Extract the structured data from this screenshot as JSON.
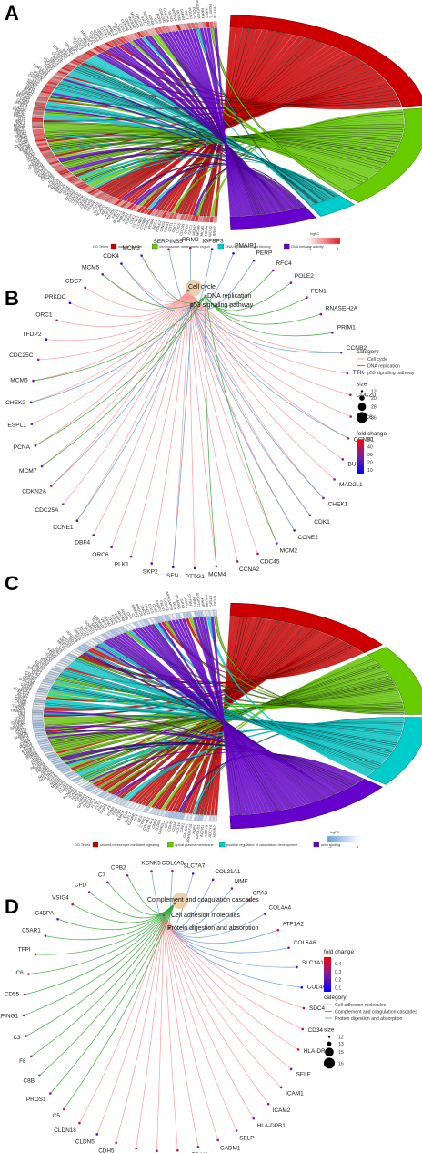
{
  "chart_data": [
    {
      "panel": "A",
      "type": "chord",
      "legend": {
        "title": "GO Terms",
        "scale_title": "logFC",
        "scale_ticks": [
          "1",
          "3"
        ],
        "low_color": "#ffffff",
        "high_color": "#e41a1c"
      },
      "terms": [
        {
          "name": "nuclear division",
          "color": "#cc0000",
          "genes": 70
        },
        {
          "name": "chromosome, centromeric region",
          "color": "#66cc00",
          "genes": 50
        },
        {
          "name": "DNA replication origin binding",
          "color": "#00cccc",
          "genes": 10
        },
        {
          "name": "DNA helicase activity",
          "color": "#6600cc",
          "genes": 22
        }
      ],
      "genes": [
        "RRM2",
        "MCM2",
        "MCM4",
        "MCM5",
        "MCM6",
        "MCM7",
        "ORC1",
        "ORC6",
        "CDC45",
        "CDC6",
        "CDC7",
        "CDT1",
        "GINS1",
        "GINS2",
        "POLE2",
        "RFC4",
        "PCNA",
        "CCNA2",
        "CCNB1",
        "CCNB2",
        "CCNE1",
        "CDK1",
        "TOP2A",
        "BUB1",
        "BUB1B",
        "MAD2L1",
        "KIF11",
        "KIF20A",
        "KIF2C",
        "KIF4A",
        "NCAPG",
        "NDC80",
        "NUF2",
        "CENPF",
        "CENPA",
        "CENPE",
        "CENPI",
        "CENPK",
        "CENPN",
        "CENPU",
        "CENPW",
        "SKA1",
        "SKA3",
        "SPC24",
        "SPC25",
        "ZWINT",
        "AURKA",
        "AURKB",
        "PLK1",
        "TTK",
        "CDCA8",
        "BIRC5",
        "ESPL1",
        "PTTG1",
        "CDC20",
        "ASPM",
        "DLGAP5",
        "HJURP",
        "OIP5",
        "SGO1",
        "SGO2",
        "TPX2",
        "PRC1",
        "KIF14",
        "KIF18A",
        "KIF18B",
        "DEPDC1",
        "CCNF",
        "CDCA5",
        "ECT2",
        "SPAG5",
        "NEK2",
        "TRIP13",
        "UBE2C",
        "HMMR",
        "FBXO5",
        "KNL1",
        "MKI67",
        "DTL",
        "CHEK1",
        "BRCA1",
        "RAD51",
        "RAD54L",
        "HELLS",
        "BLM",
        "WDHD1",
        "CLSPN",
        "EXO1",
        "RECQL4",
        "FANCD2",
        "FANCI",
        "POLQ",
        "MND1",
        "DNA2",
        "PRIM1",
        "TONSL",
        "LIG1",
        "CHAF1A",
        "CHAF1B",
        "DSCC1",
        "E2F8",
        "TIMELESS",
        "TK1",
        "TYMS",
        "NCAPH",
        "NCAPD2",
        "SMC4",
        "KIF15",
        "CKAP2L",
        "CKAP5",
        "CDK5RAP2",
        "MELK",
        "PBK",
        "SHCBP1",
        "STIL",
        "TACC3",
        "NUSAP1",
        "CEP55",
        "ANLN",
        "RACGAP1",
        "KIF23",
        "CDCA3",
        "CDKN3",
        "UBE2T",
        "GTSE1",
        "FOXM1",
        "MYBL2",
        "E2F1",
        "LMNB1",
        "CKS2",
        "CENPM",
        "CENPH",
        "INCENP",
        "MIS18BP1",
        "ERCC6L",
        "KIFC1",
        "NCAPG2",
        "KIF4B",
        "CIT",
        "BORA",
        "CDC25C",
        "CDC25A",
        "MCM3",
        "MCM10",
        "MCM8",
        "GMNN",
        "RBL1",
        "POLA1",
        "POLD1",
        "RNASEH2A",
        "RRM1",
        "WEE1",
        "PKMYT1",
        "CHTF18"
      ]
    },
    {
      "panel": "B",
      "type": "cnetplot",
      "categories": [
        "Cell cycle",
        "DNA replication",
        "p53 signaling pathway"
      ],
      "category_colors": [
        "#ff9999",
        "#33aa33",
        "#6699dd"
      ],
      "size_legend": [
        12,
        20,
        28,
        36
      ],
      "fold_change": {
        "min": 5,
        "max": 50,
        "ticks": [
          50,
          40,
          30,
          20,
          10
        ],
        "low_color": "#0000ff",
        "high_color": "#ff0000"
      },
      "legend_titles": {
        "category": "category",
        "size": "size",
        "color": "fold change"
      },
      "genes": [
        {
          "name": "SERPINB5",
          "fc": 38,
          "cats": [
            2
          ]
        },
        {
          "name": "RRM2",
          "fc": 30,
          "cats": [
            2
          ]
        },
        {
          "name": "IGFBP3",
          "fc": 14,
          "cats": [
            2
          ]
        },
        {
          "name": "PMAIP1",
          "fc": 12,
          "cats": [
            2
          ]
        },
        {
          "name": "PERP",
          "fc": 18,
          "cats": [
            2
          ]
        },
        {
          "name": "RFC4",
          "fc": 26,
          "cats": [
            1
          ]
        },
        {
          "name": "POLE2",
          "fc": 35,
          "cats": [
            1
          ]
        },
        {
          "name": "FEN1",
          "fc": 30,
          "cats": [
            1
          ]
        },
        {
          "name": "RNASEH2A",
          "fc": 32,
          "cats": [
            1
          ]
        },
        {
          "name": "PRIM1",
          "fc": 22,
          "cats": [
            1
          ]
        },
        {
          "name": "CCNB2",
          "fc": 28,
          "cats": [
            0,
            2
          ]
        },
        {
          "name": "TTK",
          "fc": 34,
          "cats": [
            0
          ]
        },
        {
          "name": "CDC20",
          "fc": 40,
          "cats": [
            0
          ]
        },
        {
          "name": "CDC6",
          "fc": 36,
          "cats": [
            0
          ]
        },
        {
          "name": "CCNB1",
          "fc": 30,
          "cats": [
            0,
            2
          ]
        },
        {
          "name": "BUB1",
          "fc": 32,
          "cats": [
            0
          ]
        },
        {
          "name": "MAD2L1",
          "fc": 24,
          "cats": [
            0
          ]
        },
        {
          "name": "CHEK1",
          "fc": 28,
          "cats": [
            0,
            2
          ]
        },
        {
          "name": "CDK1",
          "fc": 33,
          "cats": [
            0,
            2
          ]
        },
        {
          "name": "CCNE2",
          "fc": 20,
          "cats": [
            0,
            2
          ]
        },
        {
          "name": "MCM2",
          "fc": 27,
          "cats": [
            0,
            1
          ]
        },
        {
          "name": "CDC45",
          "fc": 31,
          "cats": [
            0
          ]
        },
        {
          "name": "CCNA2",
          "fc": 29,
          "cats": [
            0
          ]
        },
        {
          "name": "MCM4",
          "fc": 25,
          "cats": [
            0,
            1
          ]
        },
        {
          "name": "PTTG1",
          "fc": 22,
          "cats": [
            0
          ]
        },
        {
          "name": "SFN",
          "fc": 15,
          "cats": [
            0,
            2
          ]
        },
        {
          "name": "SKP2",
          "fc": 18,
          "cats": [
            0
          ]
        },
        {
          "name": "PLK1",
          "fc": 36,
          "cats": [
            0
          ]
        },
        {
          "name": "ORC6",
          "fc": 21,
          "cats": [
            0
          ]
        },
        {
          "name": "DBF4",
          "fc": 19,
          "cats": [
            0
          ]
        },
        {
          "name": "CCNE1",
          "fc": 17,
          "cats": [
            0,
            2
          ]
        },
        {
          "name": "CDC25A",
          "fc": 26,
          "cats": [
            0
          ]
        },
        {
          "name": "CDKN2A",
          "fc": 45,
          "cats": [
            0,
            2
          ]
        },
        {
          "name": "MCM7",
          "fc": 23,
          "cats": [
            0,
            1
          ]
        },
        {
          "name": "PCNA",
          "fc": 14,
          "cats": [
            0,
            1
          ]
        },
        {
          "name": "ESPL1",
          "fc": 28,
          "cats": [
            0
          ]
        },
        {
          "name": "CHEK2",
          "fc": 16,
          "cats": [
            0,
            2
          ]
        },
        {
          "name": "MCM6",
          "fc": 24,
          "cats": [
            0,
            1
          ]
        },
        {
          "name": "CDC25C",
          "fc": 30,
          "cats": [
            0
          ]
        },
        {
          "name": "TFDP2",
          "fc": 11,
          "cats": [
            0
          ]
        },
        {
          "name": "ORC1",
          "fc": 33,
          "cats": [
            0
          ]
        },
        {
          "name": "PRKDC",
          "fc": 9,
          "cats": [
            0
          ]
        },
        {
          "name": "CDC7",
          "fc": 21,
          "cats": [
            0
          ]
        },
        {
          "name": "MCM5",
          "fc": 20,
          "cats": [
            0,
            1
          ]
        },
        {
          "name": "CDK4",
          "fc": 12,
          "cats": [
            0,
            2
          ]
        },
        {
          "name": "MCM3",
          "fc": 19,
          "cats": [
            0,
            1
          ]
        }
      ]
    },
    {
      "panel": "C",
      "type": "chord",
      "legend": {
        "title": "GO Terms",
        "scale_title": "logFC",
        "scale_ticks": [
          "-2",
          "-1"
        ],
        "low_color": "#6a9fe0",
        "high_color": "#ffffff"
      },
      "terms": [
        {
          "name": "second-messenger-mediated signaling",
          "color": "#cc0000",
          "genes": 40
        },
        {
          "name": "apical plasma membrane",
          "color": "#66cc00",
          "genes": 30
        },
        {
          "name": "positive regulation of vasculature development",
          "color": "#00cccc",
          "genes": 30
        },
        {
          "name": "actin binding",
          "color": "#6600cc",
          "genes": 40
        }
      ],
      "genes": [
        "ADRB2",
        "ADCY4",
        "ADCY9",
        "AGTR1",
        "APOLD1",
        "AQP1",
        "ARHGEF15",
        "CALCRL",
        "CAV1",
        "CCL14",
        "CD34",
        "CDH5",
        "CFD",
        "CHRDL1",
        "CLDN5",
        "CNN1",
        "COL4A1",
        "COL4A2",
        "CYR61",
        "DES",
        "DPT",
        "EDNRB",
        "EGFL7",
        "ELN",
        "EMCN",
        "ENG",
        "ERG",
        "ESAM",
        "F8",
        "FABP4",
        "FHL1",
        "FLT1",
        "FLNA",
        "GATA2",
        "GNG11",
        "GPIHBP1",
        "GRK5",
        "HSPB7",
        "HYAL2",
        "ICAM2",
        "KCNMB1",
        "KDR",
        "LMOD1",
        "LYVE1",
        "MFAP4",
        "MMRN1",
        "MYH11",
        "MYL9",
        "MYLK",
        "NOSTRIN",
        "NOTCH4",
        "NPR1",
        "PALMD",
        "PDE3A",
        "PECAM1",
        "PLVAP",
        "PODN",
        "PRX",
        "PTPRB",
        "RAMP2",
        "RAMP3",
        "RASIP1",
        "RGS5",
        "ROBO4",
        "S1PR1",
        "SELE",
        "SELP",
        "SHANK3",
        "SMTN",
        "SOX17",
        "SOX18",
        "SPARCL1",
        "SYNPO",
        "SYNPO2",
        "TAGLN",
        "TCF21",
        "TEK",
        "TIE1",
        "TINAGL1",
        "TNXB",
        "TSPAN7",
        "VWF",
        "CASQ2",
        "CAVIN1",
        "CAVIN2",
        "ACTA2",
        "ACTG2",
        "ADAMTS1",
        "AOC3",
        "CALD1",
        "CD36",
        "CLEC14A",
        "CNRIP1",
        "CRYAB",
        "CXCL12",
        "DMD",
        "EFEMP1",
        "EPAS1",
        "FBLN5",
        "FXYD1",
        "GJA4",
        "HEG1",
        "IL33",
        "ITGA8",
        "JAM2",
        "KANK3",
        "LDB2",
        "LIFR",
        "LPL",
        "MEF2C",
        "MEOX2",
        "MYOCD",
        "NID1",
        "PDGFRB",
        "PLN",
        "PRKG1",
        "PTGDS",
        "SCN7A",
        "SLIT3",
        "SORBS1",
        "SRPX",
        "TGFBR3",
        "TMEM100",
        "VIPR1",
        "ZFPM2",
        "CPA3",
        "FOSB",
        "EGR1",
        "ABCA8",
        "ADH1B",
        "CFH",
        "C7",
        "MMRN2",
        "PROCR",
        "SNCG",
        "TSHZ2",
        "CLIC5",
        "CD93",
        "ENPP2",
        "FBLN1",
        "CCDC3",
        "ARHGAP29",
        "DCN",
        "SCARA5",
        "GPX3",
        "LAMA4",
        "SPTBN1",
        "NRP1",
        "ANGPT1",
        "HHIP",
        "APLNR",
        "PTGIS",
        "ITGA7"
      ]
    },
    {
      "panel": "D",
      "type": "cnetplot",
      "categories": [
        "Complement and coagulation cascades",
        "Cell adhesion molecules",
        "Protein digestion and absorption"
      ],
      "legend_categories": [
        "Cell adhesion molecules",
        "Complement and coagulation cascades",
        "Protein digestion and absorption"
      ],
      "category_colors": [
        "#33aa33",
        "#ff9999",
        "#6699dd"
      ],
      "size_legend": [
        12,
        13,
        15,
        16
      ],
      "fold_change": {
        "min": 0.05,
        "max": 0.48,
        "ticks": [
          0.4,
          0.3,
          0.2,
          0.1
        ],
        "low_color": "#0000ff",
        "high_color": "#ff0000"
      },
      "legend_titles": {
        "category": "category",
        "size": "size",
        "color": "fold change"
      },
      "genes": [
        {
          "name": "KCNK5",
          "fc": 0.3,
          "cats": [
            2
          ]
        },
        {
          "name": "COL6A5",
          "fc": 0.4,
          "cats": [
            2
          ]
        },
        {
          "name": "SLC7A7",
          "fc": 0.2,
          "cats": [
            2
          ]
        },
        {
          "name": "COL21A1",
          "fc": 0.25,
          "cats": [
            2
          ]
        },
        {
          "name": "MME",
          "fc": 0.3,
          "cats": [
            2
          ]
        },
        {
          "name": "CPA3",
          "fc": 0.35,
          "cats": [
            2
          ]
        },
        {
          "name": "COL4A4",
          "fc": 0.2,
          "cats": [
            2
          ]
        },
        {
          "name": "ATP1A2",
          "fc": 0.45,
          "cats": [
            2
          ]
        },
        {
          "name": "COL6A6",
          "fc": 0.3,
          "cats": [
            2
          ]
        },
        {
          "name": "SLC1A1",
          "fc": 0.15,
          "cats": [
            2
          ]
        },
        {
          "name": "COL4A3",
          "fc": 0.1,
          "cats": [
            2
          ]
        },
        {
          "name": "SDC4",
          "fc": 0.4,
          "cats": [
            1
          ]
        },
        {
          "name": "CD34",
          "fc": 0.35,
          "cats": [
            1
          ]
        },
        {
          "name": "HLA-DRA",
          "fc": 0.4,
          "cats": [
            1
          ]
        },
        {
          "name": "SELE",
          "fc": 0.25,
          "cats": [
            1
          ]
        },
        {
          "name": "ICAM1",
          "fc": 0.3,
          "cats": [
            1
          ]
        },
        {
          "name": "ICAM2",
          "fc": 0.3,
          "cats": [
            1
          ]
        },
        {
          "name": "HLA-DPB1",
          "fc": 0.3,
          "cats": [
            1
          ]
        },
        {
          "name": "SELP",
          "fc": 0.35,
          "cats": [
            1
          ]
        },
        {
          "name": "CADM1",
          "fc": 0.3,
          "cats": [
            1
          ]
        },
        {
          "name": "ESAM",
          "fc": 0.35,
          "cats": [
            1
          ]
        },
        {
          "name": "HLA-DMA",
          "fc": 0.35,
          "cats": [
            1
          ]
        },
        {
          "name": "PTPRM",
          "fc": 0.3,
          "cats": [
            1
          ]
        },
        {
          "name": "JAM2",
          "fc": 0.4,
          "cats": [
            1
          ]
        },
        {
          "name": "CDH5",
          "fc": 0.4,
          "cats": [
            1
          ]
        },
        {
          "name": "CLDN5",
          "fc": 0.2,
          "cats": [
            1
          ]
        },
        {
          "name": "CLDN18",
          "fc": 0.3,
          "cats": [
            1
          ]
        },
        {
          "name": "C5",
          "fc": 0.35,
          "cats": [
            0
          ]
        },
        {
          "name": "PROS1",
          "fc": 0.3,
          "cats": [
            0
          ]
        },
        {
          "name": "C8B",
          "fc": 0.3,
          "cats": [
            0
          ]
        },
        {
          "name": "F8",
          "fc": 0.3,
          "cats": [
            0
          ]
        },
        {
          "name": "C3",
          "fc": 0.3,
          "cats": [
            0
          ]
        },
        {
          "name": "SERPING1",
          "fc": 0.3,
          "cats": [
            0
          ]
        },
        {
          "name": "CD55",
          "fc": 0.3,
          "cats": [
            0
          ]
        },
        {
          "name": "C6",
          "fc": 0.3,
          "cats": [
            0
          ]
        },
        {
          "name": "TFPI",
          "fc": 0.4,
          "cats": [
            0
          ]
        },
        {
          "name": "C5AR1",
          "fc": 0.2,
          "cats": [
            0
          ]
        },
        {
          "name": "C4BPA",
          "fc": 0.2,
          "cats": [
            0
          ]
        },
        {
          "name": "VSIG4",
          "fc": 0.35,
          "cats": [
            0
          ]
        },
        {
          "name": "CFD",
          "fc": 0.3,
          "cats": [
            0
          ]
        },
        {
          "name": "C7",
          "fc": 0.3,
          "cats": [
            0
          ]
        },
        {
          "name": "CPB2",
          "fc": 0.3,
          "cats": [
            0
          ]
        }
      ]
    }
  ]
}
